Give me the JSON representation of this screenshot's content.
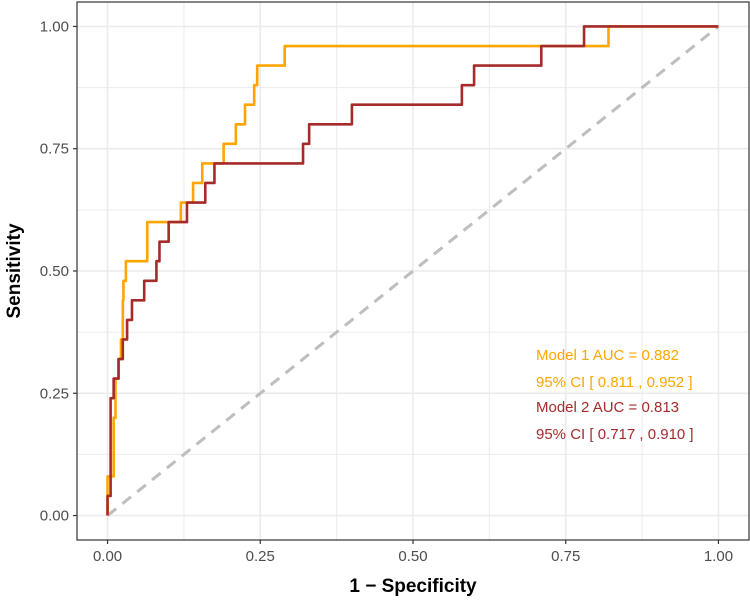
{
  "chart_data": {
    "type": "line",
    "title": "",
    "xlabel": "1 − Specificity",
    "ylabel": "Sensitivity",
    "xlim": [
      -0.05,
      1.05
    ],
    "ylim": [
      -0.05,
      1.05
    ],
    "xticks": [
      0,
      0.25,
      0.5,
      0.75,
      1
    ],
    "yticks": [
      0,
      0.25,
      0.5,
      0.75,
      1
    ],
    "xtick_labels": [
      "0.00",
      "0.25",
      "0.50",
      "0.75",
      "1.00"
    ],
    "ytick_labels": [
      "0.00",
      "0.25",
      "0.50",
      "0.75",
      "1.00"
    ],
    "grid": true,
    "reference_line": {
      "name": "chance",
      "x": [
        0,
        1
      ],
      "y": [
        0,
        1
      ],
      "style": "dashed",
      "color": "#BEBEBE"
    },
    "series": [
      {
        "name": "Model 1",
        "color": "#FFA500",
        "x": [
          0,
          0,
          0.01,
          0.01,
          0.013,
          0.013,
          0.018,
          0.018,
          0.022,
          0.022,
          0.025,
          0.025,
          0.026,
          0.026,
          0.03,
          0.03,
          0.065,
          0.065,
          0.12,
          0.12,
          0.14,
          0.14,
          0.155,
          0.155,
          0.19,
          0.19,
          0.21,
          0.21,
          0.225,
          0.225,
          0.24,
          0.24,
          0.245,
          0.245,
          0.26,
          0.26,
          0.29,
          0.29,
          0.5,
          0.82,
          0.82,
          1.0
        ],
        "y": [
          0,
          0.08,
          0.08,
          0.2,
          0.2,
          0.28,
          0.28,
          0.32,
          0.32,
          0.36,
          0.36,
          0.44,
          0.44,
          0.48,
          0.48,
          0.52,
          0.52,
          0.6,
          0.6,
          0.64,
          0.64,
          0.68,
          0.68,
          0.72,
          0.72,
          0.76,
          0.76,
          0.8,
          0.8,
          0.84,
          0.84,
          0.88,
          0.88,
          0.92,
          0.92,
          0.92,
          0.92,
          0.96,
          0.96,
          0.96,
          1.0,
          1.0
        ]
      },
      {
        "name": "Model 2",
        "color": "#A52A2A",
        "x": [
          0,
          0,
          0.005,
          0.005,
          0.01,
          0.01,
          0.018,
          0.018,
          0.025,
          0.025,
          0.032,
          0.032,
          0.04,
          0.04,
          0.06,
          0.06,
          0.065,
          0.065,
          0.08,
          0.08,
          0.085,
          0.085,
          0.1,
          0.1,
          0.13,
          0.13,
          0.16,
          0.16,
          0.175,
          0.175,
          0.2,
          0.2,
          0.32,
          0.32,
          0.33,
          0.33,
          0.4,
          0.4,
          0.57,
          0.57,
          0.58,
          0.58,
          0.6,
          0.6,
          0.71,
          0.71,
          0.75,
          0.75,
          0.78,
          0.78,
          1.0
        ],
        "y": [
          0,
          0.04,
          0.04,
          0.24,
          0.24,
          0.28,
          0.28,
          0.32,
          0.32,
          0.36,
          0.36,
          0.4,
          0.4,
          0.44,
          0.44,
          0.48,
          0.48,
          0.48,
          0.48,
          0.52,
          0.52,
          0.56,
          0.56,
          0.6,
          0.6,
          0.64,
          0.64,
          0.68,
          0.68,
          0.72,
          0.72,
          0.72,
          0.72,
          0.76,
          0.76,
          0.8,
          0.8,
          0.84,
          0.84,
          0.84,
          0.84,
          0.88,
          0.88,
          0.92,
          0.92,
          0.96,
          0.96,
          0.96,
          0.96,
          1.0,
          1.0
        ]
      }
    ],
    "annotations": [
      {
        "name": "model1-auc",
        "text": "Model 1 AUC = 0.882",
        "color": "#FFA500"
      },
      {
        "name": "model1-ci",
        "text": "95% CI [ 0.811 ,  0.952 ]",
        "color": "#FFA500"
      },
      {
        "name": "model2-auc",
        "text": "Model 2 AUC = 0.813",
        "color": "#A52A2A"
      },
      {
        "name": "model2-ci",
        "text": "95% CI [ 0.717 ,  0.910 ]",
        "color": "#A52A2A"
      }
    ],
    "legend": "none"
  }
}
